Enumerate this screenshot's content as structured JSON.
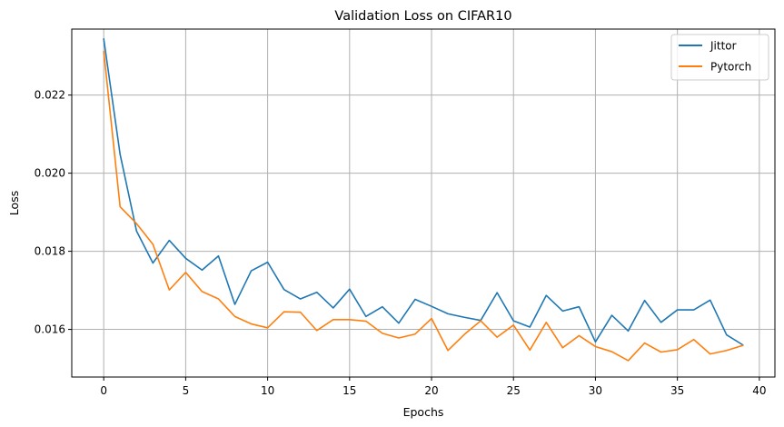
{
  "chart_data": {
    "type": "line",
    "title": "Validation Loss on CIFAR10",
    "xlabel": "Epochs",
    "ylabel": "Loss",
    "xlim": [
      -1.95,
      40.95
    ],
    "ylim": [
      0.01478,
      0.02369
    ],
    "xticks": [
      0,
      5,
      10,
      15,
      20,
      25,
      30,
      35,
      40
    ],
    "yticks": [
      0.016,
      0.018,
      0.02,
      0.022
    ],
    "ytick_labels": [
      "0.016",
      "0.018",
      "0.020",
      "0.022"
    ],
    "grid": true,
    "legend_position": "top-right",
    "x": [
      0,
      1,
      2,
      3,
      4,
      5,
      6,
      7,
      8,
      9,
      10,
      11,
      12,
      13,
      14,
      15,
      16,
      17,
      18,
      19,
      20,
      21,
      22,
      23,
      24,
      25,
      26,
      27,
      28,
      29,
      30,
      31,
      32,
      33,
      34,
      35,
      36,
      37,
      38,
      39
    ],
    "series": [
      {
        "name": "Jittor",
        "color": "#1f77b4",
        "values": [
          0.02344,
          0.02048,
          0.01852,
          0.0177,
          0.01828,
          0.01782,
          0.01752,
          0.01788,
          0.01664,
          0.0175,
          0.01772,
          0.01702,
          0.01678,
          0.01695,
          0.01655,
          0.01703,
          0.01633,
          0.01658,
          0.01616,
          0.01677,
          0.01659,
          0.0164,
          0.01631,
          0.01623,
          0.01694,
          0.01622,
          0.01606,
          0.01687,
          0.01647,
          0.01658,
          0.01568,
          0.01636,
          0.01596,
          0.01674,
          0.01618,
          0.0165,
          0.0165,
          0.01675,
          0.01586,
          0.0156
        ]
      },
      {
        "name": "Pytorch",
        "color": "#ff7f0e",
        "values": [
          0.02312,
          0.01914,
          0.01871,
          0.01818,
          0.01701,
          0.01746,
          0.01697,
          0.01678,
          0.01633,
          0.01614,
          0.01604,
          0.01645,
          0.01644,
          0.01597,
          0.01625,
          0.01625,
          0.01621,
          0.0159,
          0.01578,
          0.01588,
          0.01628,
          0.01546,
          0.01587,
          0.01622,
          0.0158,
          0.01611,
          0.01547,
          0.01618,
          0.01553,
          0.01584,
          0.01556,
          0.01543,
          0.0152,
          0.01565,
          0.01542,
          0.01548,
          0.01574,
          0.01537,
          0.01546,
          0.01559
        ]
      }
    ]
  }
}
